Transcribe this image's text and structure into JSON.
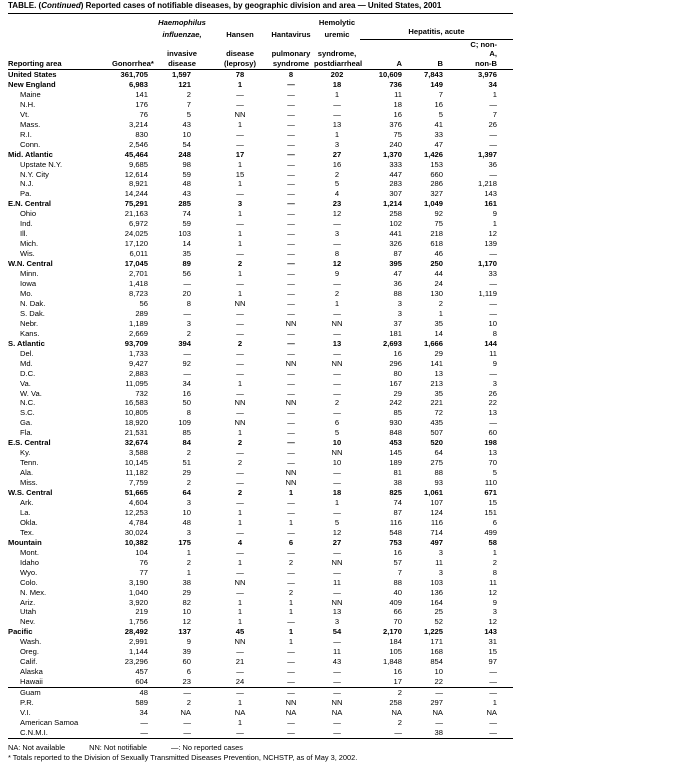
{
  "title": {
    "prefix": "TABLE. (",
    "italic": "Continued",
    "rest": ") Reported cases of notifiable diseases, by geographic division and area — United States, 2001"
  },
  "headers": {
    "area": "Reporting area",
    "gonorrhea": "Gonorrhea*",
    "haem_1": "Haemophilus",
    "haem_2": "influenzae,",
    "haem_3": "invasive",
    "haem_4": "disease",
    "hansen_1": "Hansen",
    "hansen_2": "disease",
    "hansen_3": "(leprosy)",
    "hanta_1": "Hantavirus",
    "hanta_2": "pulmonary",
    "hanta_3": "syndrome",
    "hus_1": "Hemolytic",
    "hus_2": "uremic",
    "hus_3": "syndrome,",
    "hus_4": "postdiarrheal",
    "hepatitis": "Hepatitis, acute",
    "hep_a": "A",
    "hep_b": "B",
    "hep_c_1": "C; non-A,",
    "hep_c_2": "non-B"
  },
  "rows": [
    {
      "area": "United States",
      "level": "total",
      "v": [
        "361,705",
        "1,597",
        "78",
        "8",
        "202",
        "10,609",
        "7,843",
        "3,976"
      ]
    },
    {
      "area": "New England",
      "level": "region",
      "v": [
        "6,983",
        "121",
        "1",
        "—",
        "18",
        "736",
        "149",
        "34"
      ]
    },
    {
      "area": "Maine",
      "level": "state",
      "v": [
        "141",
        "2",
        "—",
        "—",
        "1",
        "11",
        "7",
        "1"
      ]
    },
    {
      "area": "N.H.",
      "level": "state",
      "v": [
        "176",
        "7",
        "—",
        "—",
        "—",
        "18",
        "16",
        "—"
      ]
    },
    {
      "area": "Vt.",
      "level": "state",
      "v": [
        "76",
        "5",
        "NN",
        "—",
        "—",
        "16",
        "5",
        "7"
      ]
    },
    {
      "area": "Mass.",
      "level": "state",
      "v": [
        "3,214",
        "43",
        "1",
        "—",
        "13",
        "376",
        "41",
        "26"
      ]
    },
    {
      "area": "R.I.",
      "level": "state",
      "v": [
        "830",
        "10",
        "—",
        "—",
        "1",
        "75",
        "33",
        "—"
      ]
    },
    {
      "area": "Conn.",
      "level": "state",
      "v": [
        "2,546",
        "54",
        "—",
        "—",
        "3",
        "240",
        "47",
        "—"
      ]
    },
    {
      "area": "Mid. Atlantic",
      "level": "region",
      "v": [
        "45,464",
        "248",
        "17",
        "—",
        "27",
        "1,370",
        "1,426",
        "1,397"
      ]
    },
    {
      "area": "Upstate N.Y.",
      "level": "state",
      "v": [
        "9,685",
        "98",
        "1",
        "—",
        "16",
        "333",
        "153",
        "36"
      ]
    },
    {
      "area": "N.Y. City",
      "level": "state",
      "v": [
        "12,614",
        "59",
        "15",
        "—",
        "2",
        "447",
        "660",
        "—"
      ]
    },
    {
      "area": "N.J.",
      "level": "state",
      "v": [
        "8,921",
        "48",
        "1",
        "—",
        "5",
        "283",
        "286",
        "1,218"
      ]
    },
    {
      "area": "Pa.",
      "level": "state",
      "v": [
        "14,244",
        "43",
        "—",
        "—",
        "4",
        "307",
        "327",
        "143"
      ]
    },
    {
      "area": "E.N. Central",
      "level": "region",
      "v": [
        "75,291",
        "285",
        "3",
        "—",
        "23",
        "1,214",
        "1,049",
        "161"
      ]
    },
    {
      "area": "Ohio",
      "level": "state",
      "v": [
        "21,163",
        "74",
        "1",
        "—",
        "12",
        "258",
        "92",
        "9"
      ]
    },
    {
      "area": "Ind.",
      "level": "state",
      "v": [
        "6,972",
        "59",
        "—",
        "—",
        "—",
        "102",
        "75",
        "1"
      ]
    },
    {
      "area": "Ill.",
      "level": "state",
      "v": [
        "24,025",
        "103",
        "1",
        "—",
        "3",
        "441",
        "218",
        "12"
      ]
    },
    {
      "area": "Mich.",
      "level": "state",
      "v": [
        "17,120",
        "14",
        "1",
        "—",
        "—",
        "326",
        "618",
        "139"
      ]
    },
    {
      "area": "Wis.",
      "level": "state",
      "v": [
        "6,011",
        "35",
        "—",
        "—",
        "8",
        "87",
        "46",
        "—"
      ]
    },
    {
      "area": "W.N. Central",
      "level": "region",
      "v": [
        "17,045",
        "89",
        "2",
        "—",
        "12",
        "395",
        "250",
        "1,170"
      ]
    },
    {
      "area": "Minn.",
      "level": "state",
      "v": [
        "2,701",
        "56",
        "1",
        "—",
        "9",
        "47",
        "44",
        "33"
      ]
    },
    {
      "area": "Iowa",
      "level": "state",
      "v": [
        "1,418",
        "—",
        "—",
        "—",
        "—",
        "36",
        "24",
        "—"
      ]
    },
    {
      "area": "Mo.",
      "level": "state",
      "v": [
        "8,723",
        "20",
        "1",
        "—",
        "2",
        "88",
        "130",
        "1,119"
      ]
    },
    {
      "area": "N. Dak.",
      "level": "state",
      "v": [
        "56",
        "8",
        "NN",
        "—",
        "1",
        "3",
        "2",
        "—"
      ]
    },
    {
      "area": "S. Dak.",
      "level": "state",
      "v": [
        "289",
        "—",
        "—",
        "—",
        "—",
        "3",
        "1",
        "—"
      ]
    },
    {
      "area": "Nebr.",
      "level": "state",
      "v": [
        "1,189",
        "3",
        "—",
        "NN",
        "NN",
        "37",
        "35",
        "10"
      ]
    },
    {
      "area": "Kans.",
      "level": "state",
      "v": [
        "2,669",
        "2",
        "—",
        "—",
        "—",
        "181",
        "14",
        "8"
      ]
    },
    {
      "area": "S. Atlantic",
      "level": "region",
      "v": [
        "93,709",
        "394",
        "2",
        "—",
        "13",
        "2,693",
        "1,666",
        "144"
      ]
    },
    {
      "area": "Del.",
      "level": "state",
      "v": [
        "1,733",
        "—",
        "—",
        "—",
        "—",
        "16",
        "29",
        "11"
      ]
    },
    {
      "area": "Md.",
      "level": "state",
      "v": [
        "9,427",
        "92",
        "—",
        "NN",
        "NN",
        "296",
        "141",
        "9"
      ]
    },
    {
      "area": "D.C.",
      "level": "state",
      "v": [
        "2,883",
        "—",
        "—",
        "—",
        "—",
        "80",
        "13",
        "—"
      ]
    },
    {
      "area": "Va.",
      "level": "state",
      "v": [
        "11,095",
        "34",
        "1",
        "—",
        "—",
        "167",
        "213",
        "3"
      ]
    },
    {
      "area": "W. Va.",
      "level": "state",
      "v": [
        "732",
        "16",
        "—",
        "—",
        "—",
        "29",
        "35",
        "26"
      ]
    },
    {
      "area": "N.C.",
      "level": "state",
      "v": [
        "16,583",
        "50",
        "NN",
        "NN",
        "2",
        "242",
        "221",
        "22"
      ]
    },
    {
      "area": "S.C.",
      "level": "state",
      "v": [
        "10,805",
        "8",
        "—",
        "—",
        "—",
        "85",
        "72",
        "13"
      ]
    },
    {
      "area": "Ga.",
      "level": "state",
      "v": [
        "18,920",
        "109",
        "NN",
        "—",
        "6",
        "930",
        "435",
        "—"
      ]
    },
    {
      "area": "Fla.",
      "level": "state",
      "v": [
        "21,531",
        "85",
        "1",
        "—",
        "5",
        "848",
        "507",
        "60"
      ]
    },
    {
      "area": "E.S. Central",
      "level": "region",
      "v": [
        "32,674",
        "84",
        "2",
        "—",
        "10",
        "453",
        "520",
        "198"
      ]
    },
    {
      "area": "Ky.",
      "level": "state",
      "v": [
        "3,588",
        "2",
        "—",
        "—",
        "NN",
        "145",
        "64",
        "13"
      ]
    },
    {
      "area": "Tenn.",
      "level": "state",
      "v": [
        "10,145",
        "51",
        "2",
        "—",
        "10",
        "189",
        "275",
        "70"
      ]
    },
    {
      "area": "Ala.",
      "level": "state",
      "v": [
        "11,182",
        "29",
        "—",
        "NN",
        "—",
        "81",
        "88",
        "5"
      ]
    },
    {
      "area": "Miss.",
      "level": "state",
      "v": [
        "7,759",
        "2",
        "—",
        "NN",
        "—",
        "38",
        "93",
        "110"
      ]
    },
    {
      "area": "W.S. Central",
      "level": "region",
      "v": [
        "51,665",
        "64",
        "2",
        "1",
        "18",
        "825",
        "1,061",
        "671"
      ]
    },
    {
      "area": "Ark.",
      "level": "state",
      "v": [
        "4,604",
        "3",
        "—",
        "—",
        "1",
        "74",
        "107",
        "15"
      ]
    },
    {
      "area": "La.",
      "level": "state",
      "v": [
        "12,253",
        "10",
        "1",
        "—",
        "—",
        "87",
        "124",
        "151"
      ]
    },
    {
      "area": "Okla.",
      "level": "state",
      "v": [
        "4,784",
        "48",
        "1",
        "1",
        "5",
        "116",
        "116",
        "6"
      ]
    },
    {
      "area": "Tex.",
      "level": "state",
      "v": [
        "30,024",
        "3",
        "—",
        "—",
        "12",
        "548",
        "714",
        "499"
      ]
    },
    {
      "area": "Mountain",
      "level": "region",
      "v": [
        "10,382",
        "175",
        "4",
        "6",
        "27",
        "753",
        "497",
        "58"
      ]
    },
    {
      "area": "Mont.",
      "level": "state",
      "v": [
        "104",
        "1",
        "—",
        "—",
        "—",
        "16",
        "3",
        "1"
      ]
    },
    {
      "area": "Idaho",
      "level": "state",
      "v": [
        "76",
        "2",
        "1",
        "2",
        "NN",
        "57",
        "11",
        "2"
      ]
    },
    {
      "area": "Wyo.",
      "level": "state",
      "v": [
        "77",
        "1",
        "—",
        "—",
        "—",
        "7",
        "3",
        "8"
      ]
    },
    {
      "area": "Colo.",
      "level": "state",
      "v": [
        "3,190",
        "38",
        "NN",
        "—",
        "11",
        "88",
        "103",
        "11"
      ]
    },
    {
      "area": "N. Mex.",
      "level": "state",
      "v": [
        "1,040",
        "29",
        "—",
        "2",
        "—",
        "40",
        "136",
        "12"
      ]
    },
    {
      "area": "Ariz.",
      "level": "state",
      "v": [
        "3,920",
        "82",
        "1",
        "1",
        "NN",
        "409",
        "164",
        "9"
      ]
    },
    {
      "area": "Utah",
      "level": "state",
      "v": [
        "219",
        "10",
        "1",
        "1",
        "13",
        "66",
        "25",
        "3"
      ]
    },
    {
      "area": "Nev.",
      "level": "state",
      "v": [
        "1,756",
        "12",
        "1",
        "—",
        "3",
        "70",
        "52",
        "12"
      ]
    },
    {
      "area": "Pacific",
      "level": "region",
      "v": [
        "28,492",
        "137",
        "45",
        "1",
        "54",
        "2,170",
        "1,225",
        "143"
      ]
    },
    {
      "area": "Wash.",
      "level": "state",
      "v": [
        "2,991",
        "9",
        "NN",
        "1",
        "—",
        "184",
        "171",
        "31"
      ]
    },
    {
      "area": "Oreg.",
      "level": "state",
      "v": [
        "1,144",
        "39",
        "—",
        "—",
        "11",
        "105",
        "168",
        "15"
      ]
    },
    {
      "area": "Calif.",
      "level": "state",
      "v": [
        "23,296",
        "60",
        "21",
        "—",
        "43",
        "1,848",
        "854",
        "97"
      ]
    },
    {
      "area": "Alaska",
      "level": "state",
      "v": [
        "457",
        "6",
        "—",
        "—",
        "—",
        "16",
        "10",
        "—"
      ]
    },
    {
      "area": "Hawaii",
      "level": "state",
      "v": [
        "604",
        "23",
        "24",
        "—",
        "—",
        "17",
        "22",
        "—"
      ]
    },
    {
      "area": "Guam",
      "level": "territory",
      "v": [
        "48",
        "—",
        "—",
        "—",
        "—",
        "2",
        "—",
        "—"
      ]
    },
    {
      "area": "P.R.",
      "level": "territory",
      "v": [
        "589",
        "2",
        "1",
        "NN",
        "NN",
        "258",
        "297",
        "1"
      ]
    },
    {
      "area": "V.I.",
      "level": "territory",
      "v": [
        "34",
        "NA",
        "NA",
        "NA",
        "NA",
        "NA",
        "NA",
        "NA"
      ]
    },
    {
      "area": "American Samoa",
      "level": "territory",
      "v": [
        "—",
        "—",
        "1",
        "—",
        "—",
        "2",
        "—",
        "—"
      ]
    },
    {
      "area": "C.N.M.I.",
      "level": "territory",
      "v": [
        "—",
        "—",
        "—",
        "—",
        "—",
        "—",
        "38",
        "—"
      ]
    }
  ],
  "footnotes": {
    "na": "NA: Not available",
    "nn": "NN: Not notifiable",
    "dash": "—: No reported cases",
    "star": "* Totals reported to the Division of Sexually Transmitted Diseases Prevention, NCHSTP, as of May 3, 2002."
  }
}
